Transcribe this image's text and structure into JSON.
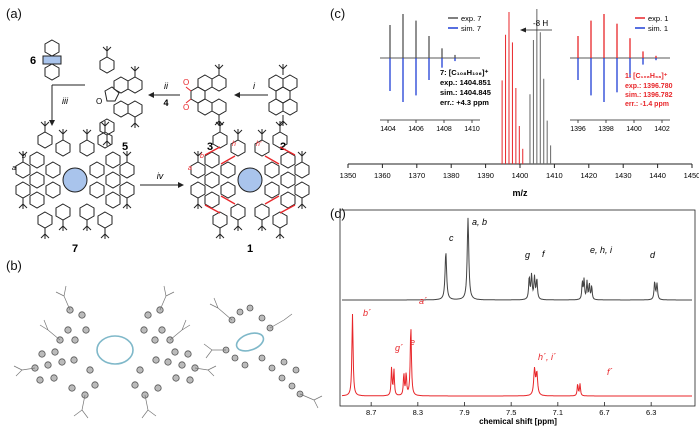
{
  "panels": {
    "a": "(a)",
    "b": "(b)",
    "c": "(c)",
    "d": "(d)"
  },
  "scheme": {
    "compounds": {
      "c6": "6",
      "c5": "5",
      "c3": "3",
      "c2": "2",
      "c7": "7",
      "c1": "1"
    },
    "arrows": {
      "i": "i",
      "ii": "ii",
      "iii": "iii",
      "iv": "iv",
      "four": "4"
    },
    "atoms": {
      "ketone_o": "O",
      "o1": "O",
      "o2": "O"
    },
    "proton_labels_7": {
      "a": "a",
      "b": "b"
    },
    "proton_labels_1": {
      "a": "a",
      "b": "b",
      "h": "h",
      "hp": "h'"
    }
  },
  "ms": {
    "xlabel": "m/z",
    "xticks": [
      "1350",
      "1360",
      "1370",
      "1380",
      "1390",
      "1400",
      "1410",
      "1420",
      "1430",
      "1440",
      "1450"
    ],
    "shift_label": "-8 H",
    "legend_left": {
      "exp": "exp. 7",
      "sim": "sim. 7"
    },
    "legend_right": {
      "exp": "exp. 1",
      "sim": "sim. 1"
    },
    "info_left": {
      "formula": "7: [C₁₀₈H₁₀₆]⁺",
      "exp": "exp.: 1404.851",
      "sim": "sim.: 1404.845",
      "err": "err.: +4.3 ppm"
    },
    "info_right": {
      "formula": "1: [C₁₀₈H₉₈]⁺",
      "exp": "exp.: 1396.780",
      "sim": "sim.: 1396.782",
      "err": "err.: -1.4 ppm"
    },
    "inset_left_ticks": [
      "1404",
      "1406",
      "1408",
      "1410"
    ],
    "inset_right_ticks": [
      "1396",
      "1398",
      "1400",
      "1402"
    ],
    "colors": {
      "exp7": "#555555",
      "sim": "#1f3fd6",
      "exp1": "#e8262a"
    }
  },
  "chart_data": {
    "type": "line",
    "xlabel": "chemical shift [ppm]",
    "xticks": [
      "8.7",
      "8.3",
      "7.9",
      "7.5",
      "7.1",
      "6.7",
      "6.3"
    ],
    "reversed_x": true,
    "series": [
      {
        "peaks_ppm": [
          8.06,
          7.87,
          7.34,
          7.28,
          6.88,
          6.84,
          6.81,
          6.26
        ],
        "labels": {
          "ab": "a, b",
          "c": "c",
          "g": "g",
          "f": "f",
          "ehi": "e, h, i",
          "d": "d"
        }
      },
      {
        "peaks_ppm": [
          8.86,
          8.52,
          8.41,
          8.36,
          7.3,
          6.92
        ],
        "labels": {
          "bp": "b´",
          "gp": "g´",
          "ep": "e",
          "ap": "a´",
          "hi": "h´, i´",
          "fp": "f´"
        }
      }
    ]
  }
}
